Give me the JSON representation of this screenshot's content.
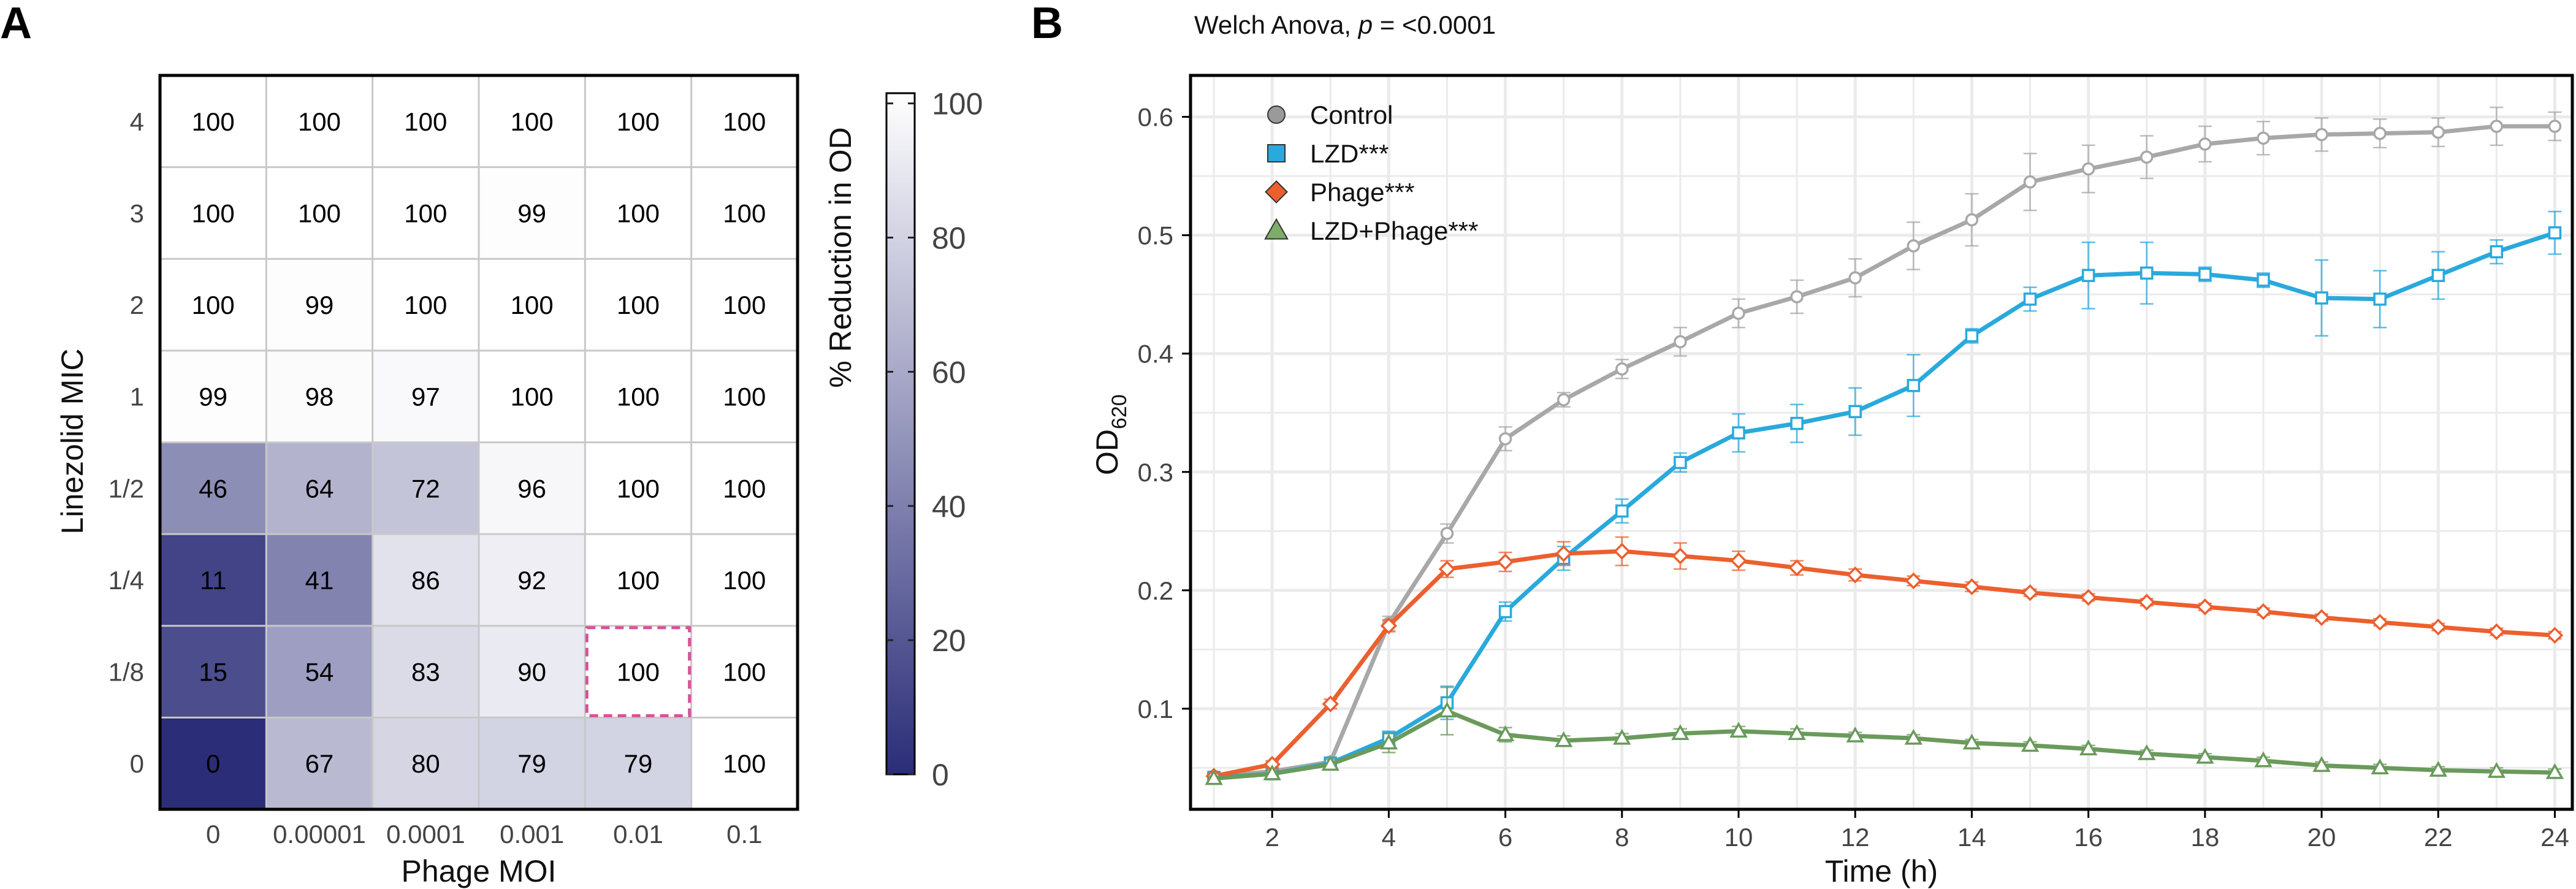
{
  "panels": {
    "a": "A",
    "b": "B"
  },
  "chart_data": [
    {
      "panel": "A",
      "type": "heatmap",
      "title": "",
      "xlabel": "Phage MOI",
      "ylabel": "Linezolid MIC",
      "x_categories": [
        "0",
        "0.00001",
        "0.0001",
        "0.001",
        "0.01",
        "0.1"
      ],
      "y_categories": [
        "4",
        "3",
        "2",
        "1",
        "1/2",
        "1/4",
        "1/8",
        "0"
      ],
      "values": [
        [
          100,
          100,
          100,
          100,
          100,
          100
        ],
        [
          100,
          100,
          100,
          99,
          100,
          100
        ],
        [
          100,
          99,
          100,
          100,
          100,
          100
        ],
        [
          99,
          98,
          97,
          100,
          100,
          100
        ],
        [
          46,
          64,
          72,
          96,
          100,
          100
        ],
        [
          11,
          41,
          86,
          92,
          100,
          100
        ],
        [
          15,
          54,
          83,
          90,
          100,
          100
        ],
        [
          0,
          67,
          80,
          79,
          79,
          100
        ]
      ],
      "highlighted_cell": {
        "row": "1/8",
        "col": "0.01",
        "color": "#d6539a"
      },
      "colorbar": {
        "title": "% Reduction in OD",
        "range": [
          0,
          100
        ],
        "ticks": [
          "0",
          "20",
          "40",
          "60",
          "80",
          "100"
        ],
        "low_color": "#2b2d78",
        "high_color": "#ffffff"
      }
    },
    {
      "panel": "B",
      "type": "line",
      "title": "Welch Anova, ",
      "title_p": "p",
      "title_suffix": " = <0.0001",
      "xlabel": "Time (h)",
      "ylabel_main": "OD",
      "ylabel_sub": "620",
      "xlim": [
        0.6,
        24.3
      ],
      "ylim": [
        0.015,
        0.635
      ],
      "xticks": [
        "2",
        "4",
        "6",
        "8",
        "10",
        "12",
        "14",
        "16",
        "18",
        "20",
        "22",
        "24"
      ],
      "yticks": [
        "0.1",
        "0.2",
        "0.3",
        "0.4",
        "0.5",
        "0.6"
      ],
      "x": [
        1,
        2,
        3,
        4,
        5,
        6,
        7,
        8,
        9,
        10,
        11,
        12,
        13,
        14,
        15,
        16,
        17,
        18,
        19,
        20,
        21,
        22,
        23,
        24
      ],
      "series": [
        {
          "name": "Control",
          "color": "#a8a8a8",
          "legend_color": "#9a9a9a",
          "marker": "circle",
          "values": [
            0.043,
            0.047,
            0.055,
            0.172,
            0.248,
            0.328,
            0.361,
            0.387,
            0.41,
            0.434,
            0.448,
            0.464,
            0.491,
            0.513,
            0.545,
            0.556,
            0.566,
            0.577,
            0.582,
            0.585,
            0.586,
            0.587,
            0.592,
            0.592
          ],
          "errors": [
            0.003,
            0.003,
            0.004,
            0.006,
            0.008,
            0.01,
            0.006,
            0.008,
            0.012,
            0.012,
            0.014,
            0.016,
            0.02,
            0.022,
            0.024,
            0.02,
            0.018,
            0.015,
            0.014,
            0.014,
            0.012,
            0.012,
            0.016,
            0.012
          ]
        },
        {
          "name": "LZD***",
          "color": "#29a9dc",
          "legend_color": "#29a9dc",
          "marker": "square",
          "values": [
            0.042,
            0.045,
            0.054,
            0.075,
            0.105,
            0.182,
            0.227,
            0.267,
            0.308,
            0.333,
            0.341,
            0.351,
            0.373,
            0.415,
            0.446,
            0.466,
            0.468,
            0.467,
            0.462,
            0.447,
            0.446,
            0.466,
            0.486,
            0.502
          ],
          "errors": [
            0.003,
            0.003,
            0.004,
            0.006,
            0.014,
            0.008,
            0.01,
            0.01,
            0.008,
            0.016,
            0.016,
            0.02,
            0.026,
            0.006,
            0.01,
            0.028,
            0.026,
            0.006,
            0.006,
            0.032,
            0.024,
            0.02,
            0.01,
            0.018
          ]
        },
        {
          "name": "Phage***",
          "color": "#ec5f2e",
          "legend_color": "#ec5f2e",
          "marker": "diamond",
          "values": [
            0.043,
            0.053,
            0.104,
            0.17,
            0.218,
            0.224,
            0.231,
            0.233,
            0.229,
            0.225,
            0.219,
            0.213,
            0.208,
            0.203,
            0.198,
            0.194,
            0.19,
            0.186,
            0.182,
            0.177,
            0.173,
            0.169,
            0.165,
            0.162
          ],
          "errors": [
            0.002,
            0.003,
            0.004,
            0.005,
            0.007,
            0.008,
            0.01,
            0.012,
            0.011,
            0.008,
            0.006,
            0.005,
            0.004,
            0.004,
            0.003,
            0.003,
            0.003,
            0.003,
            0.003,
            0.003,
            0.003,
            0.003,
            0.003,
            0.003
          ]
        },
        {
          "name": "LZD+Phage***",
          "color": "#6a9a5c",
          "legend_color": "#7cae6a",
          "marker": "triangle",
          "values": [
            0.041,
            0.045,
            0.053,
            0.071,
            0.098,
            0.078,
            0.073,
            0.075,
            0.079,
            0.081,
            0.079,
            0.077,
            0.075,
            0.071,
            0.069,
            0.066,
            0.062,
            0.059,
            0.056,
            0.052,
            0.05,
            0.048,
            0.047,
            0.046
          ],
          "errors": [
            0.002,
            0.003,
            0.004,
            0.008,
            0.02,
            0.006,
            0.004,
            0.004,
            0.004,
            0.004,
            0.004,
            0.003,
            0.003,
            0.003,
            0.003,
            0.003,
            0.003,
            0.003,
            0.003,
            0.003,
            0.003,
            0.003,
            0.003,
            0.003
          ]
        }
      ]
    }
  ]
}
